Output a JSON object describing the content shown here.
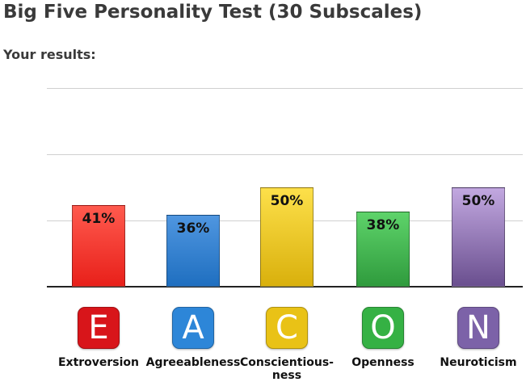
{
  "page": {
    "title": "Big Five Personality Test (30 Subscales)",
    "subtitle": "Your results:"
  },
  "chart_data": {
    "type": "bar",
    "categories": [
      "Extroversion",
      "Agreeableness",
      "Conscientious-ness",
      "Openness",
      "Neuroticism"
    ],
    "category_label_lines": [
      [
        "Extroversion"
      ],
      [
        "Agreeableness"
      ],
      [
        "Conscientious-",
        "ness"
      ],
      [
        "Openness"
      ],
      [
        "Neuroticism"
      ]
    ],
    "values": [
      41,
      36,
      50,
      38,
      50
    ],
    "value_labels": [
      "41%",
      "36%",
      "50%",
      "38%",
      "50%"
    ],
    "icons": [
      "E",
      "A",
      "C",
      "O",
      "N"
    ],
    "ylim": [
      0,
      100
    ],
    "grid": true,
    "colors": [
      {
        "top": "#ff5a4e",
        "bottom": "#e8201a",
        "icon": "#d8151a"
      },
      {
        "top": "#4f96e0",
        "bottom": "#1f6fc0",
        "icon": "#2d86d8"
      },
      {
        "top": "#fde04a",
        "bottom": "#d9b00c",
        "icon": "#e9c216"
      },
      {
        "top": "#5ed36a",
        "bottom": "#2f9b3d",
        "icon": "#35b144"
      },
      {
        "top": "#c2a8e0",
        "bottom": "#6a4f8f",
        "icon": "#7c62a8"
      }
    ]
  }
}
